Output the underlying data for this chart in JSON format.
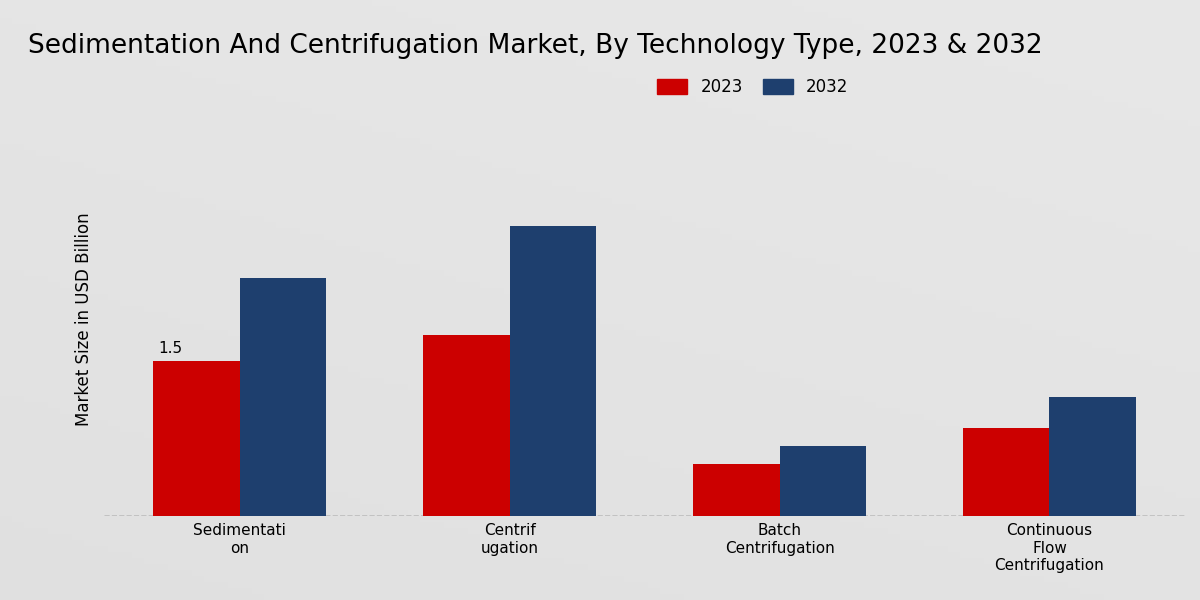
{
  "title": "Sedimentation And Centrifugation Market, By Technology Type, 2023 & 2032",
  "ylabel": "Market Size in USD Billion",
  "categories": [
    "Sedimentati\non",
    "Centrif\nugation",
    "Batch\nCentrifugation",
    "Continuous\nFlow\nCentrifugation"
  ],
  "values_2023": [
    1.5,
    1.75,
    0.5,
    0.85
  ],
  "values_2032": [
    2.3,
    2.8,
    0.68,
    1.15
  ],
  "color_2023": "#cc0000",
  "color_2032": "#1e3f6e",
  "annotation_text": "1.5",
  "annotation_bar_index": 0,
  "background_color_light": "#e8e8e8",
  "background_color_dark": "#c8c8c8",
  "title_fontsize": 19,
  "ylabel_fontsize": 12,
  "legend_fontsize": 12,
  "tick_fontsize": 11,
  "bar_width": 0.32,
  "ylim": [
    0,
    3.8
  ],
  "legend_labels": [
    "2023",
    "2032"
  ]
}
